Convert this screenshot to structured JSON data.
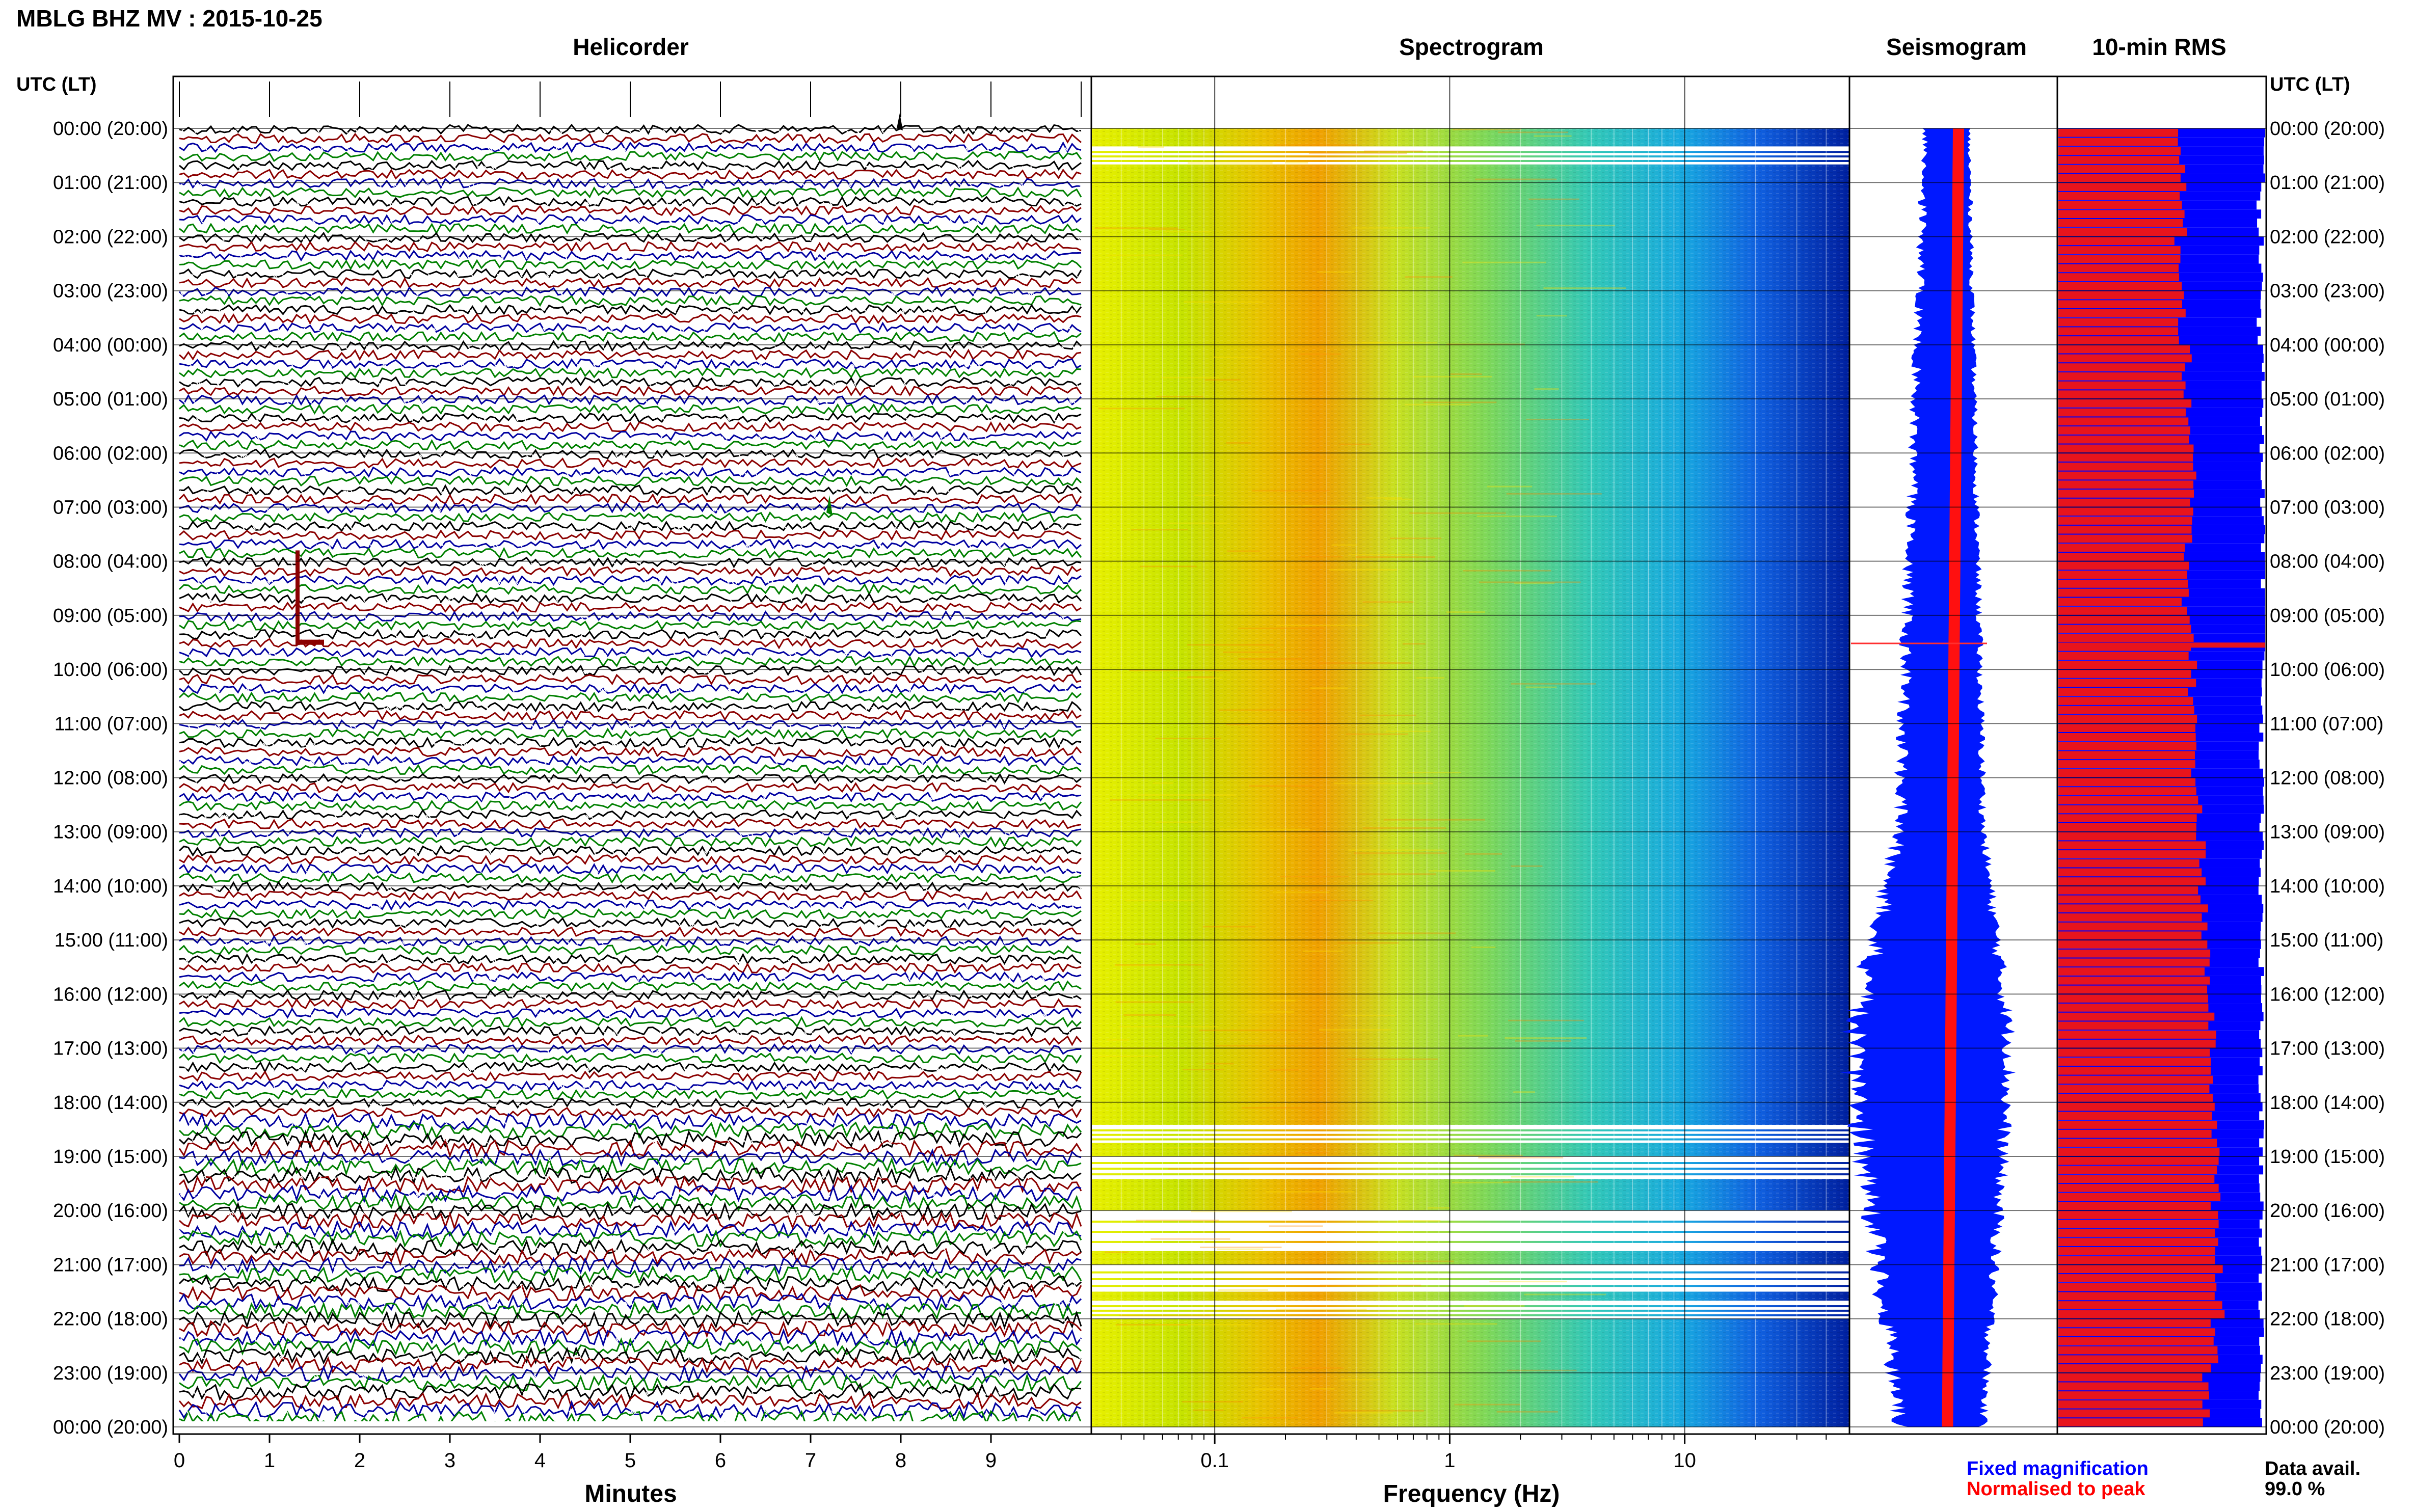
{
  "header": {
    "title": "MBLG BHZ MV : 2015-10-25",
    "tz_label_left": "UTC (LT)",
    "tz_label_right": "UTC (LT)"
  },
  "panels": {
    "helicorder": "Helicorder",
    "spectrogram": "Spectrogram",
    "seismogram": "Seismogram",
    "rms": "10-min RMS"
  },
  "time_labels": [
    "00:00 (20:00)",
    "01:00 (21:00)",
    "02:00 (22:00)",
    "03:00 (23:00)",
    "04:00 (00:00)",
    "05:00 (01:00)",
    "06:00 (02:00)",
    "07:00 (03:00)",
    "08:00 (04:00)",
    "09:00 (05:00)",
    "10:00 (06:00)",
    "11:00 (07:00)",
    "12:00 (08:00)",
    "13:00 (09:00)",
    "14:00 (10:00)",
    "15:00 (11:00)",
    "16:00 (12:00)",
    "17:00 (13:00)",
    "18:00 (14:00)",
    "19:00 (15:00)",
    "20:00 (16:00)",
    "21:00 (17:00)",
    "22:00 (18:00)",
    "23:00 (19:00)",
    "00:00 (20:00)"
  ],
  "helicorder_axis": {
    "xlabel": "Minutes",
    "ticks": [
      "0",
      "1",
      "2",
      "3",
      "4",
      "5",
      "6",
      "7",
      "8",
      "9"
    ]
  },
  "spectrogram_axis": {
    "xlabel": "Frequency (Hz)",
    "ticks": [
      "0.1",
      "1",
      "10"
    ]
  },
  "legend": {
    "fixed": "Fixed magnification",
    "normalised": "Normalised to peak",
    "fixed_color": "#0000ff",
    "normalised_color": "#ff0000"
  },
  "availability": {
    "label": "Data avail.",
    "value": "99.0 %"
  },
  "colors": {
    "trace_cycle": [
      "#000000",
      "#8b0000",
      "#0000a0",
      "#008000"
    ],
    "rms_fixed": "#0000ff",
    "rms_normalised": "#e8141c"
  },
  "chart_data": {
    "type": "heatmap",
    "helicorder": {
      "minutes_per_line": 10,
      "lines": 144,
      "x_range": [
        0,
        10
      ],
      "events_utc": [
        "00:00",
        "07:00",
        "09:00",
        "19:00",
        "21:30",
        "22:00"
      ]
    },
    "spectrogram": {
      "x_scale": "log",
      "x_range_hz": [
        0.03,
        50
      ],
      "dominant_band_hz": [
        0.15,
        0.3
      ],
      "data_gaps_utc": [
        [
          "00:20",
          "00:40"
        ],
        [
          "18:25",
          "18:45"
        ],
        [
          "19:00",
          "19:25"
        ],
        [
          "20:00",
          "20:45"
        ],
        [
          "21:00",
          "21:30"
        ],
        [
          "21:40",
          "22:00"
        ]
      ]
    },
    "rms_10min": {
      "x_range": [
        0,
        1
      ],
      "fixed_hourly": [
        1.0,
        0.97,
        0.98,
        0.97,
        0.99,
        0.98,
        0.99,
        0.99,
        0.99,
        1.0,
        0.98,
        0.98,
        0.98,
        0.98,
        0.98,
        0.98,
        0.98,
        0.98,
        0.98,
        0.98,
        0.98,
        0.98,
        0.98,
        0.98
      ],
      "normalised_hourly": [
        0.6,
        0.6,
        0.58,
        0.6,
        0.62,
        0.64,
        0.66,
        0.63,
        0.62,
        0.65,
        0.65,
        0.66,
        0.68,
        0.69,
        0.7,
        0.72,
        0.74,
        0.75,
        0.76,
        0.76,
        0.77,
        0.78,
        0.76,
        0.72
      ]
    }
  }
}
